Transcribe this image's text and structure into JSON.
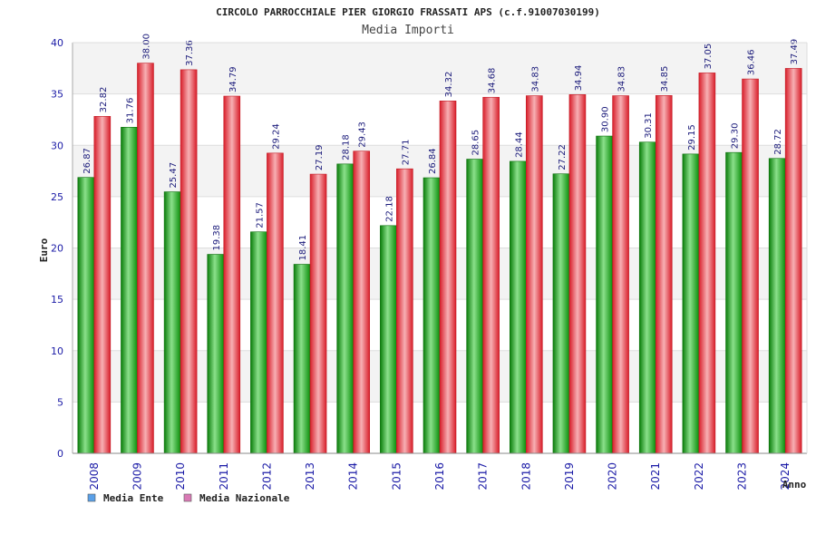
{
  "chart_data": {
    "type": "bar",
    "title": "CIRCOLO PARROCCHIALE PIER GIORGIO FRASSATI APS (c.f.91007030199)",
    "subtitle": "Media Importi",
    "ylabel": "Euro",
    "xlabel": "Anno",
    "ylim": [
      0,
      40
    ],
    "yticks": [
      0,
      5,
      10,
      15,
      20,
      25,
      30,
      35,
      40
    ],
    "categories": [
      "2008",
      "2009",
      "2010",
      "2011",
      "2012",
      "2013",
      "2014",
      "2015",
      "2016",
      "2017",
      "2018",
      "2019",
      "2020",
      "2021",
      "2022",
      "2023",
      "2024"
    ],
    "series": [
      {
        "name": "Media Ente",
        "color": "#1fae1f",
        "legend_color": "#5aa0e8",
        "values": [
          26.87,
          31.76,
          25.47,
          19.38,
          21.57,
          18.41,
          28.18,
          22.18,
          26.84,
          28.65,
          28.44,
          27.22,
          30.9,
          30.31,
          29.15,
          29.3,
          28.72
        ],
        "labels": [
          "26.87",
          "31.76",
          "25.47",
          "19.38",
          "21.57",
          "18.41",
          "28.18",
          "22.18",
          "26.84",
          "28.65",
          "28.44",
          "27.22",
          "30.90",
          "30.31",
          "29.15",
          "29.30",
          "28.72"
        ]
      },
      {
        "name": "Media Nazionale",
        "color": "#e8323c",
        "legend_color": "#d97ab5",
        "values": [
          32.82,
          38.0,
          37.36,
          34.79,
          29.24,
          27.19,
          29.43,
          27.71,
          34.32,
          34.68,
          34.83,
          34.94,
          34.83,
          34.85,
          37.05,
          36.46,
          37.49
        ],
        "labels": [
          "32.82",
          "38.00",
          "37.36",
          "34.79",
          "29.24",
          "27.19",
          "29.43",
          "27.71",
          "34.32",
          "34.68",
          "34.83",
          "34.94",
          "34.83",
          "34.85",
          "37.05",
          "36.46",
          "37.49"
        ]
      }
    ],
    "grid": true,
    "legend_position": "bottom-left"
  }
}
